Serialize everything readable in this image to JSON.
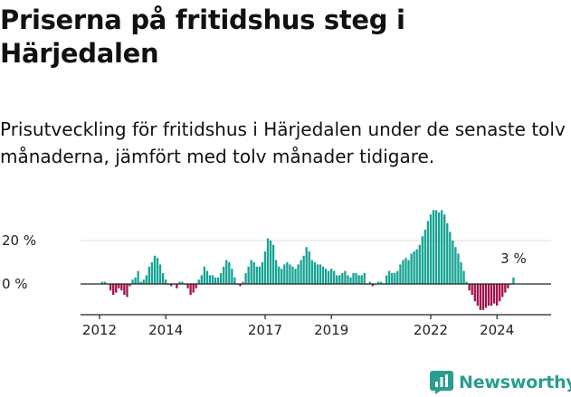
{
  "title": "Priserna på fritidshus steg i Härjedalen",
  "subtitle": "Prisutveckling för fritidshus i Härjedalen under de senaste tolv månaderna, jämfört med tolv månader tidigare.",
  "brand": "Newsworthy",
  "colors": {
    "positive": "#16a394",
    "negative": "#a3124c",
    "grid": "#dddddd",
    "axis": "#222222"
  },
  "chart_data": {
    "type": "bar",
    "start": "2012-01",
    "frequency": "monthly",
    "ylim": [
      -16,
      37
    ],
    "yticks": [
      {
        "value": 20,
        "label": "20 %"
      },
      {
        "value": 0,
        "label": "0 %"
      }
    ],
    "xticks": [
      {
        "label": "2012",
        "index": 0
      },
      {
        "label": "2014",
        "index": 24
      },
      {
        "label": "2017",
        "index": 60
      },
      {
        "label": "2019",
        "index": 84
      },
      {
        "label": "2022",
        "index": 120
      },
      {
        "label": "2024",
        "index": 144
      }
    ],
    "last_label": "3 %",
    "values": [
      1,
      1,
      0,
      -3,
      -5,
      -4,
      -2,
      -3,
      -5,
      -6,
      -1,
      2,
      3,
      6,
      1,
      2,
      4,
      8,
      10,
      13,
      12,
      9,
      5,
      2,
      0,
      -1,
      0,
      -2,
      1,
      1,
      0,
      -2,
      -5,
      -4,
      -2,
      2,
      4,
      8,
      6,
      4,
      4,
      3,
      3,
      5,
      8,
      11,
      10,
      7,
      3,
      0,
      -1,
      1,
      5,
      8,
      11,
      10,
      8,
      8,
      10,
      15,
      21,
      20,
      18,
      11,
      8,
      7,
      9,
      10,
      9,
      8,
      7,
      9,
      11,
      13,
      17,
      15,
      11,
      10,
      9,
      9,
      8,
      7,
      6,
      7,
      6,
      4,
      4,
      5,
      6,
      4,
      3,
      5,
      5,
      4,
      4,
      5,
      0,
      1,
      -1,
      0,
      1,
      1,
      0,
      4,
      6,
      5,
      5,
      6,
      9,
      11,
      12,
      11,
      14,
      15,
      16,
      18,
      22,
      25,
      29,
      32,
      34,
      34,
      33,
      34,
      32,
      28,
      24,
      20,
      17,
      14,
      10,
      6,
      1,
      -3,
      -5,
      -8,
      -10,
      -12,
      -12,
      -11,
      -10,
      -10,
      -9,
      -10,
      -8,
      -6,
      -4,
      -2,
      0,
      3
    ]
  }
}
